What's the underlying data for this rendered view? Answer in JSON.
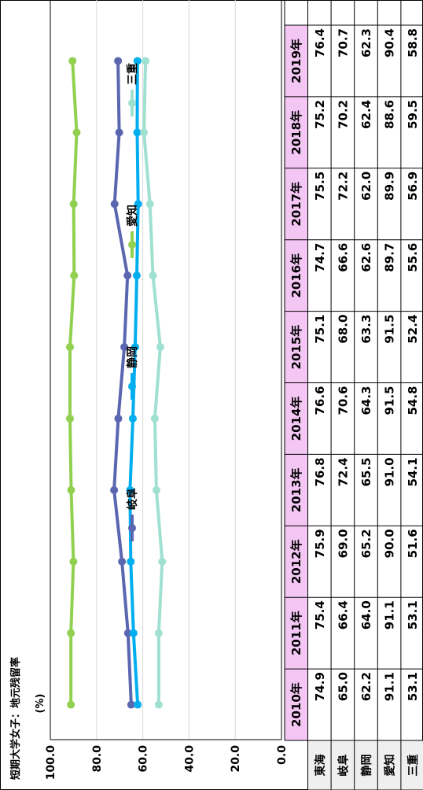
{
  "chart_data": {
    "type": "line",
    "title": "短期大学女子：地元残留率",
    "ylabel": "(%)",
    "ylim": [
      0,
      100
    ],
    "yticks": [
      "0.0",
      "20.0",
      "40.0",
      "60.0",
      "80.0",
      "100.0"
    ],
    "categories": [
      "2010年",
      "2011年",
      "2012年",
      "2013年",
      "2014年",
      "2015年",
      "2016年",
      "2017年",
      "2018年",
      "2019年"
    ],
    "grid": true,
    "legend_position": "top",
    "series": [
      {
        "name": "岐阜",
        "color": "#5b66b0",
        "values": [
          65.0,
          66.4,
          69.0,
          72.4,
          70.6,
          68.0,
          66.6,
          72.2,
          70.2,
          70.7
        ]
      },
      {
        "name": "静岡",
        "color": "#00aeef",
        "values": [
          62.2,
          64.0,
          65.2,
          65.5,
          64.3,
          63.3,
          62.6,
          62.0,
          62.4,
          62.3
        ]
      },
      {
        "name": "愛知",
        "color": "#92d050",
        "values": [
          91.1,
          91.1,
          90.0,
          91.0,
          91.5,
          91.5,
          89.7,
          89.9,
          88.6,
          90.4
        ]
      },
      {
        "name": "三重",
        "color": "#9fe0d0",
        "values": [
          53.1,
          53.1,
          51.6,
          54.1,
          54.8,
          52.4,
          55.6,
          56.9,
          59.5,
          58.8
        ]
      }
    ],
    "table": {
      "rows": [
        {
          "name": "東海",
          "values": [
            "74.9",
            "75.4",
            "75.9",
            "76.8",
            "76.6",
            "75.1",
            "74.7",
            "75.5",
            "75.2",
            "76.4"
          ]
        },
        {
          "name": "岐阜",
          "values": [
            "65.0",
            "66.4",
            "69.0",
            "72.4",
            "70.6",
            "68.0",
            "66.6",
            "72.2",
            "70.2",
            "70.7"
          ]
        },
        {
          "name": "静岡",
          "values": [
            "62.2",
            "64.0",
            "65.2",
            "65.5",
            "64.3",
            "63.3",
            "62.6",
            "62.0",
            "62.4",
            "62.3"
          ]
        },
        {
          "name": "愛知",
          "values": [
            "91.1",
            "91.1",
            "90.0",
            "91.0",
            "91.5",
            "91.5",
            "89.7",
            "89.9",
            "88.6",
            "90.4"
          ]
        },
        {
          "name": "三重",
          "values": [
            "53.1",
            "53.1",
            "51.6",
            "54.1",
            "54.8",
            "52.4",
            "55.6",
            "56.9",
            "59.5",
            "58.8"
          ]
        }
      ],
      "header_color": "#f4c6f4",
      "rowhead_color": "#efefef"
    }
  }
}
